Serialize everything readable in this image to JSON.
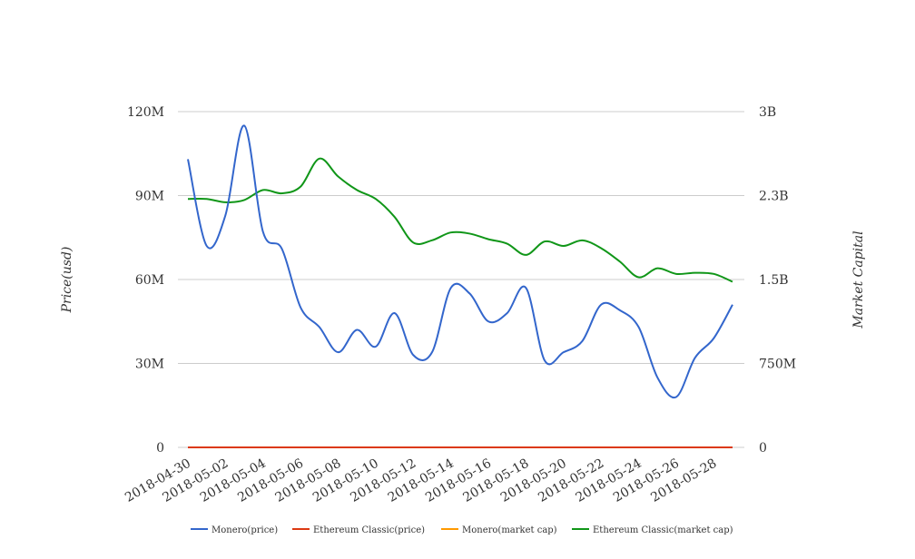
{
  "chart_data": {
    "type": "line",
    "x": [
      "2018-04-30",
      "2018-05-01",
      "2018-05-02",
      "2018-05-03",
      "2018-05-04",
      "2018-05-05",
      "2018-05-06",
      "2018-05-07",
      "2018-05-08",
      "2018-05-09",
      "2018-05-10",
      "2018-05-11",
      "2018-05-12",
      "2018-05-13",
      "2018-05-14",
      "2018-05-15",
      "2018-05-16",
      "2018-05-17",
      "2018-05-18",
      "2018-05-19",
      "2018-05-20",
      "2018-05-21",
      "2018-05-22",
      "2018-05-23",
      "2018-05-24",
      "2018-05-25",
      "2018-05-26",
      "2018-05-27",
      "2018-05-28",
      "2018-05-29"
    ],
    "x_tick_labels": [
      "2018-04-30",
      "2018-05-02",
      "2018-05-04",
      "2018-05-06",
      "2018-05-08",
      "2018-05-10",
      "2018-05-12",
      "2018-05-14",
      "2018-05-16",
      "2018-05-18",
      "2018-05-20",
      "2018-05-22",
      "2018-05-24",
      "2018-05-26",
      "2018-05-28"
    ],
    "ylabel": "Price(usd)",
    "y2label": "Market Capital",
    "ylim": [
      0,
      120000000
    ],
    "y2lim": [
      0,
      3000000000
    ],
    "y_ticks": [
      "0",
      "30M",
      "60M",
      "90M",
      "120M"
    ],
    "y2_ticks": [
      "0",
      "750M",
      "1.5B",
      "2.3B",
      "3B"
    ],
    "grid": true,
    "legend_position": "bottom",
    "series": [
      {
        "name": "Monero(price)",
        "axis": "left",
        "color": "#3366cc",
        "values": [
          103000000,
          72000000,
          83000000,
          115000000,
          77000000,
          71000000,
          50000000,
          43000000,
          34000000,
          42000000,
          36000000,
          48000000,
          33000000,
          34000000,
          57000000,
          55000000,
          45000000,
          48000000,
          57000000,
          31000000,
          34000000,
          38000000,
          51000000,
          49000000,
          43000000,
          25000000,
          18000000,
          32000000,
          39000000,
          51000000
        ]
      },
      {
        "name": "Ethereum Classic(price)",
        "axis": "left",
        "color": "#dc3912",
        "values": [
          16,
          16,
          16,
          17,
          17,
          17,
          18,
          18,
          17,
          17,
          17,
          16,
          15,
          15,
          15,
          15,
          15,
          15,
          15,
          15,
          15,
          15,
          15,
          14,
          14,
          14,
          13,
          13,
          13,
          13
        ]
      },
      {
        "name": "Monero(market cap)",
        "axis": "right",
        "color": "#ff9900",
        "values": [
          0,
          0,
          0,
          0,
          0,
          0,
          0,
          0,
          0,
          0,
          0,
          0,
          0,
          0,
          0,
          0,
          0,
          0,
          0,
          0,
          0,
          0,
          0,
          0,
          0,
          0,
          0,
          0,
          0,
          0
        ]
      },
      {
        "name": "Ethereum Classic(market cap)",
        "axis": "right",
        "color": "#109618",
        "values": [
          2220000000,
          2220000000,
          2190000000,
          2210000000,
          2300000000,
          2270000000,
          2330000000,
          2580000000,
          2420000000,
          2300000000,
          2220000000,
          2060000000,
          1830000000,
          1850000000,
          1920000000,
          1910000000,
          1860000000,
          1820000000,
          1720000000,
          1840000000,
          1800000000,
          1850000000,
          1780000000,
          1660000000,
          1520000000,
          1600000000,
          1550000000,
          1560000000,
          1550000000,
          1480000000
        ]
      }
    ]
  }
}
